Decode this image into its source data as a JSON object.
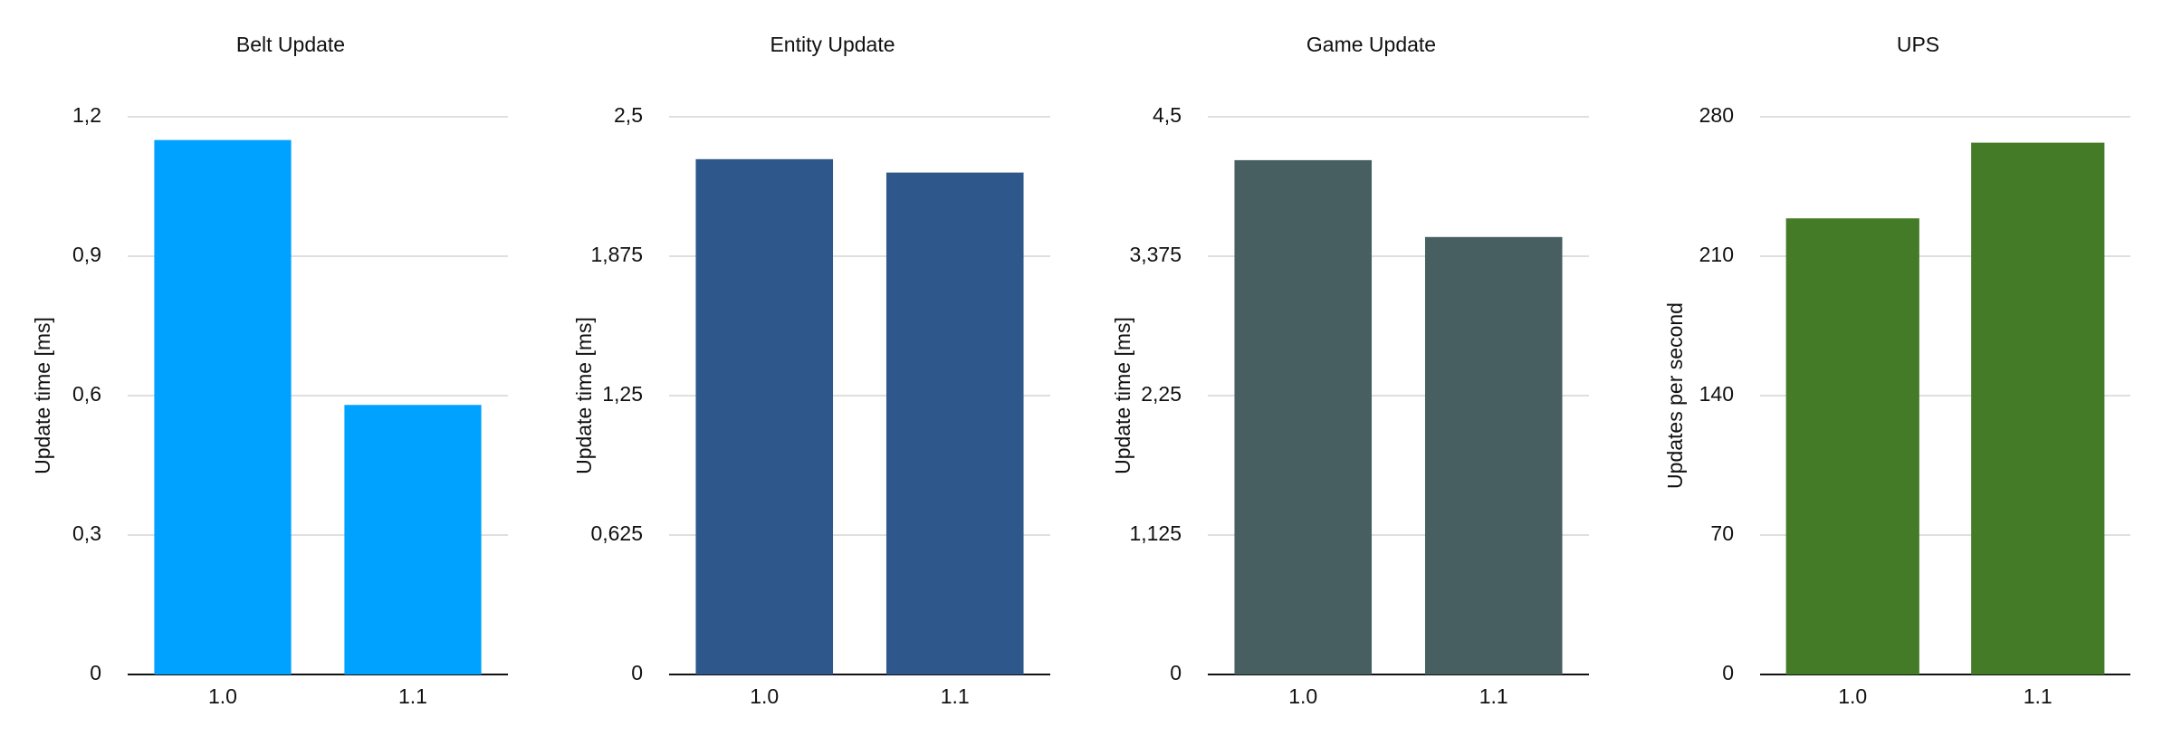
{
  "chart_data": [
    {
      "type": "bar",
      "title": "Belt Update",
      "y_label": "Update time [ms]",
      "categories": [
        "1.0",
        "1.1"
      ],
      "values": [
        1.15,
        0.58
      ],
      "color": "#00a2ff",
      "ylim": [
        0,
        1.2
      ],
      "yticks": [
        0,
        {
          "value": 0.3,
          "label": "0,3"
        },
        {
          "value": 0.6,
          "label": "0,6"
        },
        {
          "value": 0.9,
          "label": "0,9"
        },
        {
          "value": 1.2,
          "label": "1,2"
        }
      ],
      "grid": true
    },
    {
      "type": "bar",
      "title": "Entity Update",
      "y_label": "Update time [ms]",
      "categories": [
        "1.0",
        "1.1"
      ],
      "values": [
        2.31,
        2.25
      ],
      "color": "#2e578c",
      "ylim": [
        0,
        2.5
      ],
      "yticks": [
        0,
        {
          "value": 0.625,
          "label": "0,625"
        },
        {
          "value": 1.25,
          "label": "1,25"
        },
        {
          "value": 1.875,
          "label": "1,875"
        },
        {
          "value": 2.5,
          "label": "2,5"
        }
      ],
      "grid": true
    },
    {
      "type": "bar",
      "title": "Game Update",
      "y_label": "Update time [ms]",
      "categories": [
        "1.0",
        "1.1"
      ],
      "values": [
        4.15,
        3.53
      ],
      "color": "#475f61",
      "ylim": [
        0,
        4.5
      ],
      "yticks": [
        0,
        {
          "value": 1.125,
          "label": "1,125"
        },
        {
          "value": 2.25,
          "label": "2,25"
        },
        {
          "value": 3.375,
          "label": "3,375"
        },
        {
          "value": 4.5,
          "label": "4,5"
        }
      ],
      "grid": true
    },
    {
      "type": "bar",
      "title": "UPS",
      "y_label": "Updates per second",
      "categories": [
        "1.0",
        "1.1"
      ],
      "values": [
        229,
        267
      ],
      "color": "#447b26",
      "ylim": [
        0,
        280
      ],
      "yticks": [
        0,
        70,
        140,
        210,
        280
      ],
      "grid": true
    }
  ]
}
